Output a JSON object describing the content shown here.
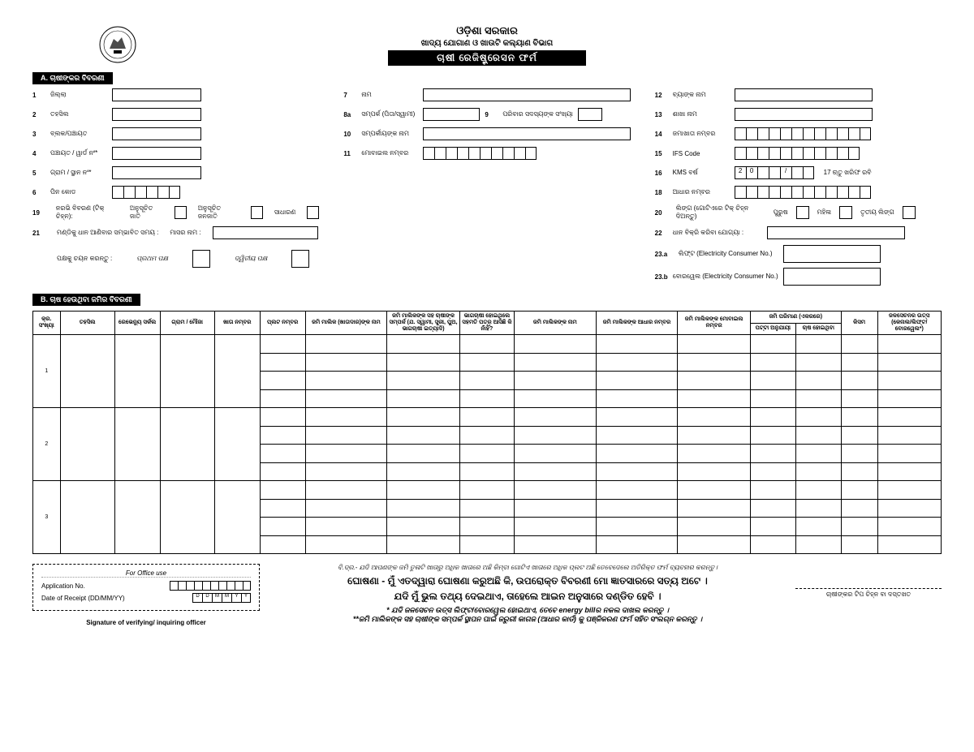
{
  "header": {
    "gov": "ଓଡ଼ିଶା ସରକାର",
    "dept": "ଖାଦ୍ୟ ଯୋଗାଣ ଓ ଖାଉଟି କଲ୍ୟାଣ ବିଭାଗ",
    "form_title": "ଚାଷୀ ରେଜିଷ୍ଟ୍ରେସନ ଫର୍ମ"
  },
  "sectionA": {
    "tab": "A. ଚାଷୀଙ୍କର ବିବରଣୀ",
    "left": [
      {
        "n": "1",
        "l": "ଜିଲ୍ଲା"
      },
      {
        "n": "2",
        "l": "ତହସିଲ"
      },
      {
        "n": "3",
        "l": "ବ୍ଲକ/ପଞ୍ଚାୟତ"
      },
      {
        "n": "4",
        "l": "ପଞ୍ଚାୟତ / ୱାର୍ଡ ନଂ*"
      },
      {
        "n": "5",
        "l": "ଗ୍ରାମ / ସ୍ଥାନ ନଂ*"
      },
      {
        "n": "6",
        "l": "ପିନ କୋଡ"
      }
    ],
    "mid": [
      {
        "n": "7",
        "l": "ନାମ"
      },
      {
        "n": "8a",
        "l": "ସମ୍ପର୍କ (ପିତା/ସ୍ୱାମୀ)"
      },
      {
        "n": "9",
        "l": "ପରିବାର ସଦସ୍ୟଙ୍କ ସଂଖ୍ୟା"
      },
      {
        "n": "10",
        "l": "ସମ୍ପର୍କୀୟଙ୍କ ନାମ"
      },
      {
        "n": "11",
        "l": "ମୋବାଇଲ ନମ୍ବର"
      }
    ],
    "r19": {
      "n": "19",
      "l": "ନରଭି ବିବରଣ (ଟିକ୍ ଚିହ୍ନ):",
      "a": "ଅନୁସୂଚିତ ଜାତି",
      "b": "ଅନୁସୂଚିତ ଜନଜାତି",
      "c": "ସାଧାରଣ"
    },
    "r21": {
      "n": "21",
      "l": "ମଣ୍ଡିକୁ ଧାନ ଆଣିବାର ସମ୍ଭାବିତ ସମୟ :",
      "m": "ମାସର ନାମ :"
    },
    "r_extra": {
      "l": "ପକ୍ଷକୁ ଚୟନ କରନ୍ତୁ :",
      "a": "ପ୍ରଥମ ପକ୍ଷ",
      "b": "ଦ୍ୱିତୀୟ ପକ୍ଷ"
    },
    "right": [
      {
        "n": "12",
        "l": "ବ୍ୟାଙ୍କ ନାମ"
      },
      {
        "n": "13",
        "l": "ଶାଖା ନାମ"
      },
      {
        "n": "14",
        "l": "ଜମାଖାତା ନମ୍ବର"
      },
      {
        "n": "15",
        "l": "IFS Code"
      },
      {
        "n": "16",
        "l": "KMS ବର୍ଷ",
        "extra": "17  ଋତୁ   ଖରିଫ    ରବି"
      },
      {
        "n": "18",
        "l": "ଆଧାର ନମ୍ବର"
      }
    ],
    "r20": {
      "n": "20",
      "l": "ଲିଙ୍ଗ (ଗୋଟିଏରେ ଟିକ୍ ଚିହ୍ନ ଦିଅନ୍ତୁ)",
      "a": "ପୁରୁଷ",
      "b": "ମହିଳା",
      "c": "ତୃତୀୟ ଲିଙ୍ଗ"
    },
    "r22": {
      "n": "22",
      "l": "ଧାନ ବିକ୍ରି କରିବା ଯୋଗ୍ୟା :"
    },
    "r23a": {
      "n": "23.a",
      "l": "ଲିଫ୍ଟ (Electricity Consumer No.)"
    },
    "r23b": {
      "n": "23.b",
      "l": "ବୋରୱେଲ (Electricity Consumer No.)"
    }
  },
  "sectionB": {
    "tab": "B. ଚାଷ ହେଉଥିବା ଜମିର ବିବରଣୀ",
    "headers": {
      "sl": "କ୍ର. ସଂଖ୍ୟା",
      "tahasil": "ତହସିଲ",
      "revcircle": "ରେଭେନ୍ୟୁ ସର୍କଲ",
      "village": "ଗ୍ରାମ / ମୌଜା",
      "khata": "ଖାତା ନମ୍ବର",
      "plot": "ପ୍ଲଟ ନମ୍ବର",
      "owner": "ଜମି ମାଲିକ (ଖାତାଦାର)ଙ୍କ ନାମ",
      "relation": "ଜମି ମାଲିକଙ୍କ ସହ ଚାଷୀଙ୍କ ସମ୍ପର୍କ (ଯ. ସ୍ୱାମୀ, ସ୍ତ୍ରୀ, ପୁଅ, ଭାଗଚାଷୀ ଇତ୍ୟାଦି)",
      "consent": "ଭାଗଚାଷୀ ହୋଇଥିଲେ ସହମତି ପତ୍ର ଆସିଛି କି ନାଁହିଁ?",
      "ownername": "ଜମି ମାଲିକଙ୍କ ନାମ",
      "owneraadhaar": "ଜମି ମାଲିକଙ୍କ ଆଧାର ନମ୍ବର",
      "ownermobile": "ଜମି ମାଲିକଙ୍କ ମୋବାଇଲ ନମ୍ବର",
      "area": "ଜମି ପରିମାଣ (ଏକରରେ)",
      "area_a": "ପଟ୍ଟା ଅନୁଯାୟୀ",
      "area_b": "ଚାଷ ହୋଇଥିବା",
      "kisam": "କିସମ",
      "irrig": "ଜଳସେଚନର ଉତ୍ସ (କେନାଲ/ଲିଫ୍ଟ/ ବୋରୱେଲ*)"
    },
    "rows": [
      "1",
      "2",
      "3"
    ]
  },
  "footer": {
    "office_hdr": "For Office use",
    "appno": "Application No.",
    "dor": "Date of Receipt (DD/MM/YY)",
    "dorcells": [
      "D",
      "D",
      "M",
      "M",
      "Y",
      "Y"
    ],
    "sig_officer": "Signature of verifying/ inquiring officer",
    "note": "ବି.ଦ୍ର.- ଯଦି ଆପଣଙ୍କ ଜମି ତୁଳାଟି ଖାତାରୁ ଅଧିକ ଖାତାରେ ଅଛି କିମ୍ବା ଗୋଟିଏ ଖାତାରେ ଅଧିକ ପ୍ଲଟ ଅଛି ତେବେଦେଲେ  ଅତିରିକ୍ତ ଫର୍ମ ବ୍ୟବହାର କରନ୍ତୁ।",
    "decl_label": "ଘୋଷଣା  -",
    "decl1": "ମୁଁ ଏତଦ୍ୱାରା ଘୋଷଣା କରୁଅଛି କି, ଉପରୋକ୍ତ ବିବରଣୀ ମୋ ଜ୍ଞାତସାରରେ ସତ୍ୟ ଅଟେ ।",
    "decl2": "ଯଦି ମୁଁ ଭୁଲ ତଥ୍ୟ ଦେଇଥାଏ, ତାହେଲେ ଆଇନ ଅନୁସାରେ ଦଣ୍ଡିତ ହେବି ।",
    "star1": "* ଯଦି ଜଳସେଚନ ଉତ୍ସ ଲିଫ୍ଟ/ବୋରୱେଲ ହୋଇଥାଏ, ତେବେ energy billର ନକଲ ଦାଖଲ କରନ୍ତୁ ।",
    "star2": "**ଜମି ମାଲିକଙ୍କ ସହ ଚାଷୀଙ୍କ ସମ୍ପର୍କ ସ୍ଥାପନ ପାଇଁ ଜରୁରୀ କାଗଜ (ଆଧାର କାର୍ଡ) କୁ ପଞ୍ଜିକରଣ ଫର୍ମ ସହିତ ସଂଲଗ୍ନ କରନ୍ତୁ ।",
    "thumb": "ଚାଷୀଙ୍କର ଟିପ ଚିହ୍ନ ବା ଦସ୍ତଖତ"
  }
}
